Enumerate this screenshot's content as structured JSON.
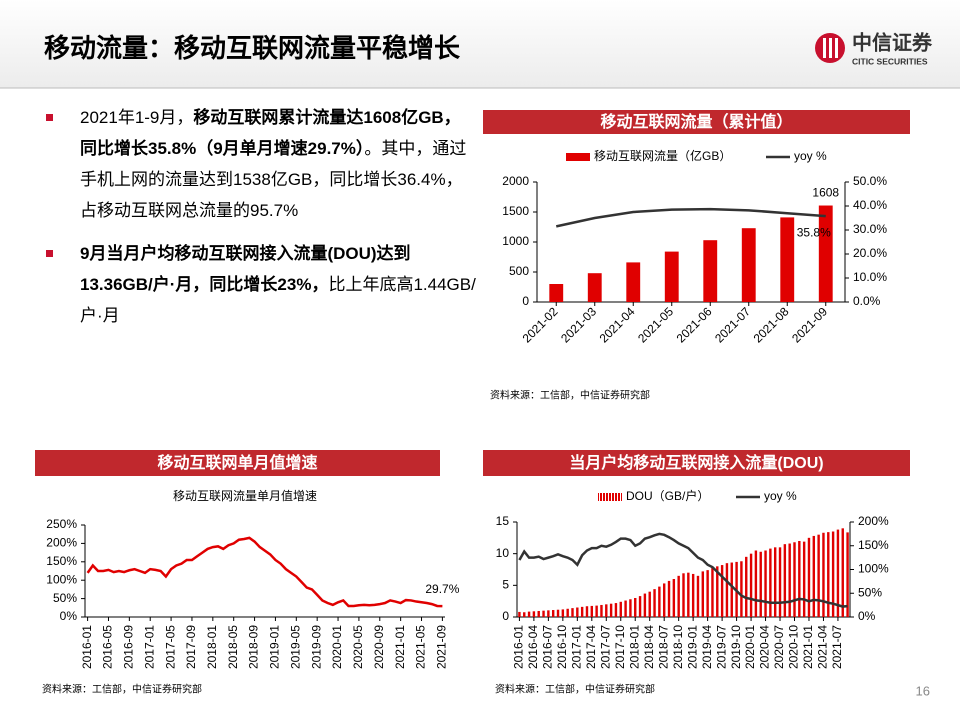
{
  "header": {
    "title": "移动流量：移动互联网流量平稳增长",
    "logo": "中信证券",
    "logo_sub": "CITIC SECURITIES"
  },
  "bullets": [
    [
      {
        "text": "2021年1-9月，",
        "bold": false
      },
      {
        "text": "移动互联网累计流量达1608亿GB，同比增长35.8%（9月单月增速29.7%）",
        "bold": true
      },
      {
        "text": "。其中，通过手机上网的流量达到1538亿GB，同比增长36.4%，占移动互联网总流量的95.7%",
        "bold": false
      }
    ],
    [
      {
        "text": "9月当月户均移动互联网接入流量(DOU)达到13.36GB/户·月，同比增长23%，",
        "bold": true
      },
      {
        "text": "比上年底高1.44GB/户·月",
        "bold": false
      }
    ]
  ],
  "page_number": "16",
  "chart_data": [
    {
      "type": "combo",
      "header": "移动互联网流量（累计值）",
      "source": "资料来源：工信部，中信证券研究部",
      "categories": [
        "2021-02",
        "2021-03",
        "2021-04",
        "2021-05",
        "2021-06",
        "2021-07",
        "2021-08",
        "2021-09"
      ],
      "series": [
        {
          "name": "移动互联网流量（亿GB）",
          "type": "bar",
          "color": "#e00000",
          "values": [
            300,
            480,
            660,
            840,
            1030,
            1230,
            1410,
            1608
          ],
          "value_labels": [
            null,
            null,
            null,
            null,
            null,
            null,
            null,
            "1608"
          ]
        },
        {
          "name": "yoy %",
          "type": "line",
          "axis": "y2",
          "color": "#333333",
          "values": [
            31.5,
            35,
            37.5,
            38.5,
            38.7,
            38.2,
            37,
            35.8
          ],
          "value_labels": [
            null,
            null,
            null,
            null,
            null,
            null,
            null,
            "35.8%"
          ]
        }
      ],
      "ylim": [
        0,
        2000
      ],
      "yticks": [
        0,
        500,
        1000,
        1500,
        2000
      ],
      "y2lim": [
        0,
        50
      ],
      "y2ticks": [
        {
          "value": 0,
          "label": "0.0%"
        },
        {
          "value": 10,
          "label": "10.0%"
        },
        {
          "value": 20,
          "label": "20.0%"
        },
        {
          "value": 30,
          "label": "30.0%"
        },
        {
          "value": 40,
          "label": "40.0%"
        },
        {
          "value": 50,
          "label": "50.0%"
        }
      ]
    },
    {
      "type": "line",
      "header": "移动互联网单月值增速",
      "title": "移动互联网流量单月值增速",
      "source": "资料来源：工信部，中信证券研究部",
      "categories": [
        "2016-01",
        null,
        null,
        null,
        "2016-05",
        null,
        null,
        null,
        "2016-09",
        null,
        null,
        null,
        "2017-01",
        null,
        null,
        null,
        "2017-05",
        null,
        null,
        null,
        "2017-09",
        null,
        null,
        null,
        "2018-01",
        null,
        null,
        null,
        "2018-05",
        null,
        null,
        null,
        "2018-09",
        null,
        null,
        null,
        "2019-01",
        null,
        null,
        null,
        "2019-05",
        null,
        null,
        null,
        "2019-09",
        null,
        null,
        null,
        "2020-01",
        null,
        null,
        null,
        "2020-05",
        null,
        null,
        null,
        "2020-09",
        null,
        null,
        null,
        "2021-01",
        null,
        null,
        null,
        "2021-05",
        null,
        null,
        null,
        "2021-09"
      ],
      "color": "#e00000",
      "values": [
        120,
        140,
        125,
        125,
        128,
        122,
        125,
        122,
        127,
        130,
        125,
        120,
        130,
        128,
        125,
        110,
        130,
        140,
        145,
        155,
        155,
        165,
        175,
        185,
        190,
        192,
        185,
        195,
        200,
        210,
        212,
        215,
        205,
        190,
        180,
        170,
        155,
        145,
        130,
        120,
        110,
        95,
        80,
        75,
        60,
        45,
        38,
        33,
        40,
        45,
        30,
        30,
        32,
        33,
        32,
        33,
        35,
        38,
        45,
        42,
        38,
        46,
        45,
        42,
        40,
        38,
        35,
        30,
        29.7
      ],
      "value_labels": [
        null,
        null,
        null,
        null,
        null,
        null,
        null,
        null,
        null,
        null,
        null,
        null,
        null,
        null,
        null,
        null,
        null,
        null,
        null,
        null,
        null,
        null,
        null,
        null,
        null,
        null,
        null,
        null,
        null,
        null,
        null,
        null,
        null,
        null,
        null,
        null,
        null,
        null,
        null,
        null,
        null,
        null,
        null,
        null,
        null,
        null,
        null,
        null,
        null,
        null,
        null,
        null,
        null,
        null,
        null,
        null,
        null,
        null,
        null,
        null,
        null,
        null,
        null,
        null,
        null,
        null,
        null,
        null,
        "29.7%"
      ],
      "ylim": [
        0,
        250
      ],
      "yticks": [
        {
          "value": 0,
          "label": "0%"
        },
        {
          "value": 50,
          "label": "50%"
        },
        {
          "value": 100,
          "label": "100%"
        },
        {
          "value": 150,
          "label": "150%"
        },
        {
          "value": 200,
          "label": "200%"
        },
        {
          "value": 250,
          "label": "250%"
        }
      ]
    },
    {
      "type": "combo",
      "header": "当月户均移动互联网接入流量(DOU)",
      "source": "资料来源：工信部，中信证券研究部",
      "categories": [
        "2016-01",
        null,
        null,
        "2016-04",
        null,
        null,
        "2016-07",
        null,
        null,
        "2016-10",
        null,
        null,
        "2017-01",
        null,
        null,
        "2017-04",
        null,
        null,
        "2017-07",
        null,
        null,
        "2017-10",
        null,
        null,
        "2018-01",
        null,
        null,
        "2018-04",
        null,
        null,
        "2018-07",
        null,
        null,
        "2018-10",
        null,
        null,
        "2019-01",
        null,
        null,
        "2019-04",
        null,
        null,
        "2019-07",
        null,
        null,
        "2019-10",
        null,
        null,
        "2020-01",
        null,
        null,
        "2020-04",
        null,
        null,
        "2020-07",
        null,
        null,
        "2020-10",
        null,
        null,
        "2021-01",
        null,
        null,
        "2021-04",
        null,
        null,
        "2021-07",
        null,
        null
      ],
      "series": [
        {
          "name": "DOU（GB/户）",
          "type": "bar",
          "color": "#e00000",
          "values": [
            0.8,
            0.75,
            0.85,
            0.9,
            0.95,
            1.0,
            1.05,
            1.1,
            1.15,
            1.2,
            1.3,
            1.4,
            1.5,
            1.6,
            1.7,
            1.75,
            1.8,
            1.9,
            2.0,
            2.1,
            2.2,
            2.4,
            2.6,
            2.8,
            3.0,
            3.3,
            3.7,
            4.0,
            4.4,
            4.8,
            5.3,
            5.7,
            6.0,
            6.5,
            6.9,
            7.0,
            6.8,
            6.5,
            7.2,
            7.4,
            7.8,
            8.0,
            8.2,
            8.5,
            8.6,
            8.7,
            8.8,
            9.5,
            10.0,
            10.5,
            10.3,
            10.5,
            10.8,
            11.0,
            11.0,
            11.5,
            11.6,
            11.8,
            12.0,
            11.9,
            12.5,
            12.8,
            13.0,
            13.3,
            13.4,
            13.5,
            13.8,
            14.0,
            13.36
          ]
        },
        {
          "name": "yoy %",
          "type": "line",
          "axis": "y2",
          "color": "#333333",
          "values": [
            120,
            138,
            125,
            125,
            127,
            122,
            125,
            128,
            132,
            128,
            125,
            120,
            110,
            130,
            140,
            145,
            145,
            150,
            148,
            152,
            158,
            165,
            165,
            162,
            150,
            155,
            165,
            168,
            172,
            175,
            173,
            168,
            162,
            155,
            150,
            145,
            135,
            125,
            120,
            110,
            105,
            95,
            85,
            75,
            65,
            55,
            45,
            40,
            38,
            35,
            34,
            32,
            30,
            30,
            30,
            31,
            32,
            35,
            38,
            37,
            33,
            36,
            35,
            33,
            30,
            28,
            25,
            22,
            23
          ]
        }
      ],
      "ylim": [
        0,
        15
      ],
      "yticks": [
        0,
        5,
        10,
        15
      ],
      "y2lim": [
        0,
        200
      ],
      "y2ticks": [
        {
          "value": 0,
          "label": "0%"
        },
        {
          "value": 50,
          "label": "50%"
        },
        {
          "value": 100,
          "label": "100%"
        },
        {
          "value": 150,
          "label": "150%"
        },
        {
          "value": 200,
          "label": "200%"
        }
      ]
    }
  ]
}
